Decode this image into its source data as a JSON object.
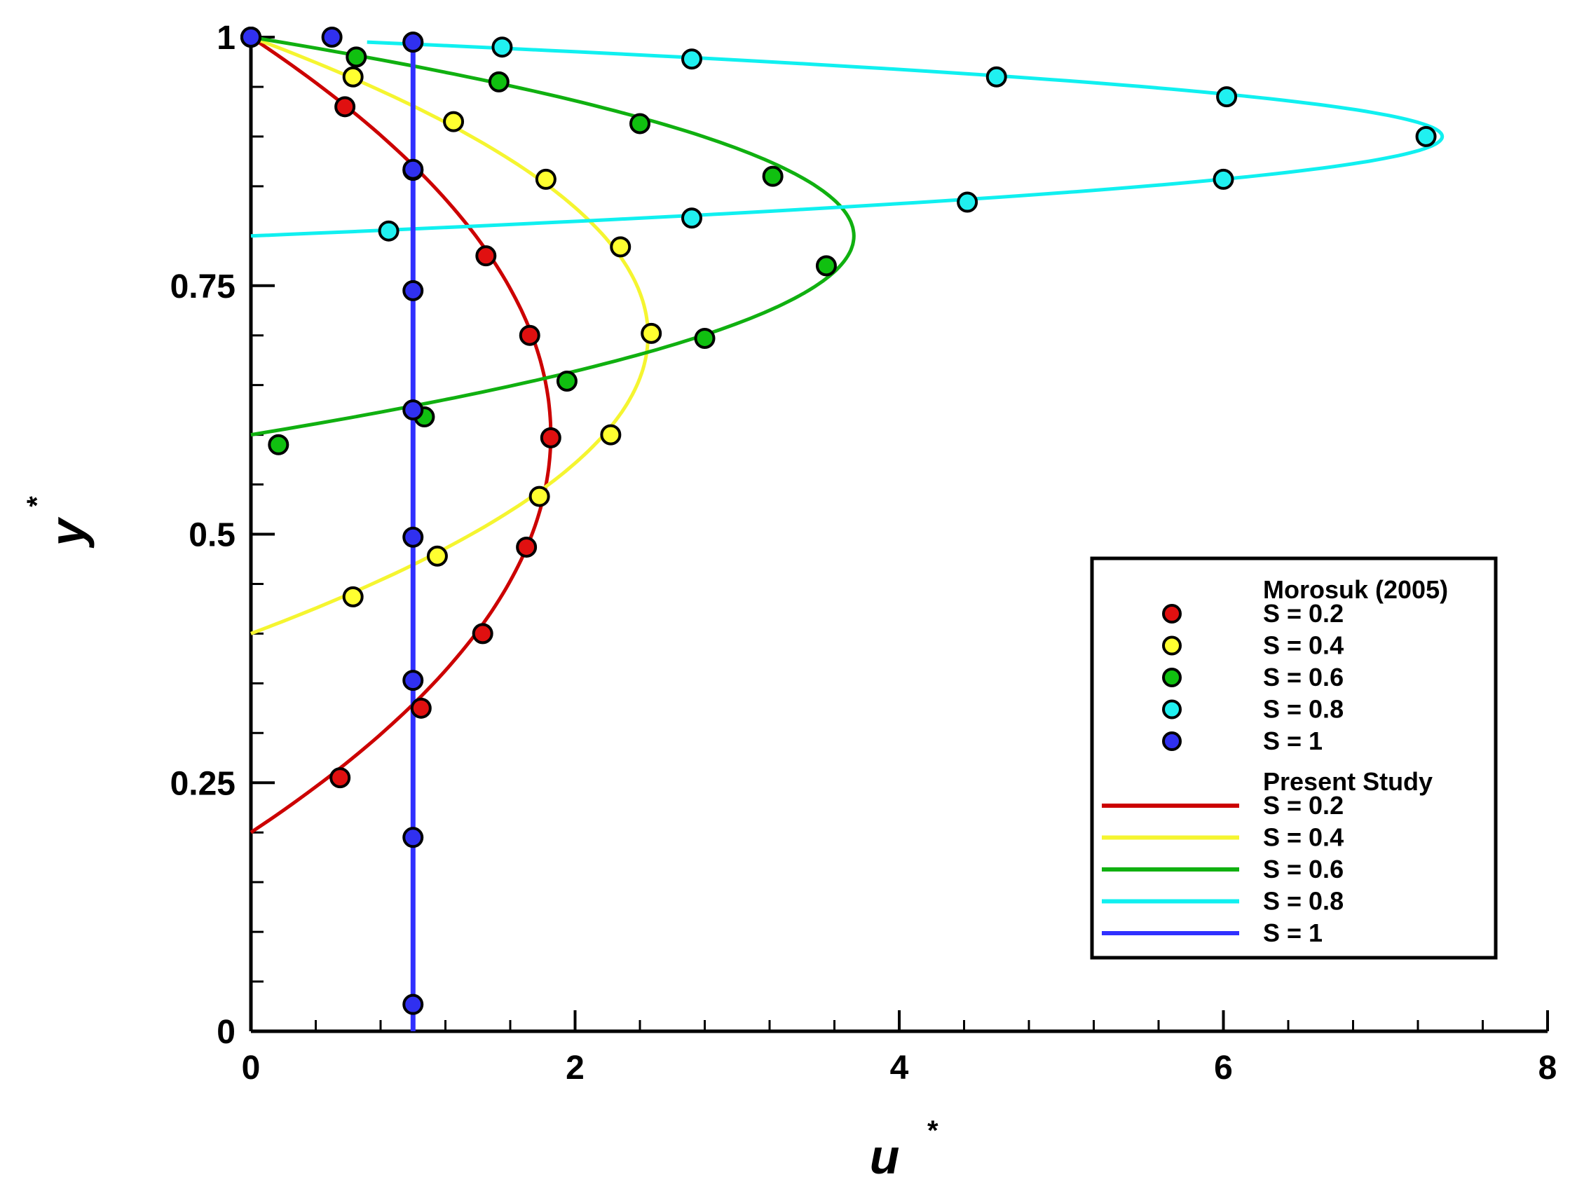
{
  "chart_data": {
    "type": "line",
    "title": "",
    "xlabel": "u",
    "xlabel_sup": "*",
    "ylabel": "y",
    "ylabel_sup": "*",
    "xlim": [
      0,
      8
    ],
    "ylim": [
      0,
      1
    ],
    "x_ticks": [
      0,
      2,
      4,
      6,
      8
    ],
    "x_tick_labels": [
      "0",
      "2",
      "4",
      "6",
      "8"
    ],
    "x_minor_step": 0.4,
    "y_ticks": [
      0,
      0.25,
      0.5,
      0.75,
      1
    ],
    "y_tick_labels": [
      "0",
      "0.25",
      "0.5",
      "0.75",
      "1"
    ],
    "y_minor_step": 0.05,
    "grid": false,
    "legend": {
      "position": "bottom-right",
      "groups": [
        {
          "title": "Morosuk (2005)",
          "kind": "marker",
          "entries": [
            {
              "label": "S = 0.2",
              "color": "#e01010"
            },
            {
              "label": "S = 0.4",
              "color": "#ffff30"
            },
            {
              "label": "S = 0.6",
              "color": "#10c010"
            },
            {
              "label": "S = 0.8",
              "color": "#20f0f0"
            },
            {
              "label": "S = 1",
              "color": "#3030f0"
            }
          ]
        },
        {
          "title": "Present Study",
          "kind": "line",
          "entries": [
            {
              "label": "S = 0.2",
              "color": "#cc0000"
            },
            {
              "label": "S = 0.4",
              "color": "#f5f530"
            },
            {
              "label": "S = 0.6",
              "color": "#10b010"
            },
            {
              "label": "S = 0.8",
              "color": "#10f0f0"
            },
            {
              "label": "S = 1",
              "color": "#3030ff"
            }
          ]
        }
      ]
    },
    "line_series": [
      {
        "color": "#cc0000",
        "u_peak": 1.85,
        "y_peak": 0.6,
        "y_start": 0.2,
        "y_end": 1.0
      },
      {
        "color": "#f5f530",
        "u_peak": 2.45,
        "y_peak": 0.7,
        "y_start": 0.4,
        "y_end": 1.0
      },
      {
        "color": "#10b010",
        "u_peak": 3.72,
        "y_peak": 0.8,
        "y_start": 0.6,
        "y_end": 1.0
      },
      {
        "color": "#10f0f0",
        "u_peak": 7.35,
        "y_peak": 0.9,
        "y_start": 0.8,
        "y_end": 0.995
      },
      {
        "color": "#3030ff",
        "u_const": 1.0,
        "y_start": 0.0,
        "y_end": 1.0
      }
    ],
    "scatter_series": [
      {
        "color": "#e01010",
        "points": [
          [
            0.55,
            0.255
          ],
          [
            1.05,
            0.325
          ],
          [
            1.43,
            0.4
          ],
          [
            1.7,
            0.487
          ],
          [
            1.85,
            0.597
          ],
          [
            1.72,
            0.7
          ],
          [
            1.45,
            0.78
          ],
          [
            1.0,
            0.866
          ],
          [
            0.58,
            0.93
          ],
          [
            0.0,
            1.0
          ]
        ]
      },
      {
        "color": "#ffff30",
        "points": [
          [
            0.63,
            0.437
          ],
          [
            1.15,
            0.478
          ],
          [
            1.78,
            0.538
          ],
          [
            2.22,
            0.6
          ],
          [
            2.47,
            0.702
          ],
          [
            2.28,
            0.789
          ],
          [
            1.82,
            0.857
          ],
          [
            1.25,
            0.915
          ],
          [
            0.63,
            0.96
          ],
          [
            0.0,
            1.0
          ]
        ]
      },
      {
        "color": "#10c010",
        "points": [
          [
            0.17,
            0.59
          ],
          [
            1.07,
            0.618
          ],
          [
            1.95,
            0.654
          ],
          [
            2.8,
            0.697
          ],
          [
            3.55,
            0.77
          ],
          [
            3.22,
            0.86
          ],
          [
            2.4,
            0.913
          ],
          [
            1.53,
            0.955
          ],
          [
            0.65,
            0.98
          ],
          [
            0.0,
            1.0
          ]
        ]
      },
      {
        "color": "#20f0f0",
        "points": [
          [
            0.85,
            0.805
          ],
          [
            2.72,
            0.818
          ],
          [
            4.42,
            0.834
          ],
          [
            6.0,
            0.857
          ],
          [
            7.25,
            0.9
          ],
          [
            6.02,
            0.94
          ],
          [
            4.6,
            0.96
          ],
          [
            2.72,
            0.978
          ],
          [
            1.55,
            0.99
          ],
          [
            1.0,
            0.995
          ]
        ]
      },
      {
        "color": "#3030f0",
        "points": [
          [
            1.0,
            0.027
          ],
          [
            1.0,
            0.195
          ],
          [
            1.0,
            0.353
          ],
          [
            1.0,
            0.497
          ],
          [
            1.0,
            0.745
          ],
          [
            1.0,
            0.867
          ],
          [
            1.0,
            0.625
          ],
          [
            1.0,
            0.995
          ],
          [
            0.5,
            1.0
          ],
          [
            0.0,
            1.0
          ]
        ]
      }
    ]
  }
}
